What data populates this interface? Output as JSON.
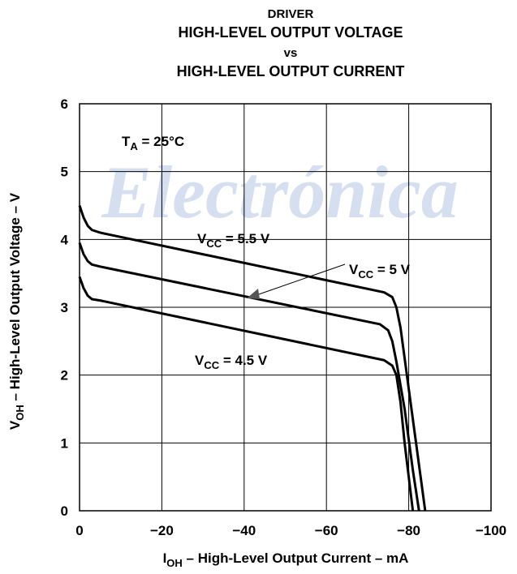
{
  "chart_data": {
    "type": "line",
    "watermark": "Electrónica",
    "title_lines": [
      "DRIVER",
      "HIGH-LEVEL OUTPUT VOLTAGE",
      "vs",
      "HIGH-LEVEL OUTPUT CURRENT"
    ],
    "xlabel": "IOH – High-Level Output Current – mA",
    "ylabel": "VOH – High-Level Output Voltage – V",
    "annotations": [
      "TA = 25°C"
    ],
    "xlim": [
      0,
      -100
    ],
    "ylim": [
      0,
      6
    ],
    "xticks": [
      0,
      {
        "value": -20,
        "label": "−20"
      },
      {
        "value": -40,
        "label": "−40"
      },
      {
        "value": -60,
        "label": "−60"
      },
      {
        "value": -80,
        "label": "−80"
      },
      {
        "value": -100,
        "label": "−100"
      }
    ],
    "yticks": [
      0,
      1,
      2,
      3,
      4,
      5,
      6
    ],
    "grid": true,
    "series": [
      {
        "name": "VCC = 5.5 V",
        "color": "#000000",
        "x": [
          0,
          -1,
          -2,
          -3,
          -5,
          -74,
          -76,
          -77,
          -78,
          -80,
          -82,
          -84
        ],
        "values": [
          4.5,
          4.32,
          4.2,
          4.14,
          4.1,
          3.22,
          3.15,
          3.0,
          2.7,
          1.8,
          0.9,
          0
        ]
      },
      {
        "name": "VCC = 5 V",
        "color": "#000000",
        "x": [
          0,
          -1,
          -2,
          -3,
          -5,
          -73,
          -75,
          -76,
          -77,
          -79,
          -81,
          -82.5
        ],
        "values": [
          3.95,
          3.78,
          3.68,
          3.63,
          3.6,
          2.75,
          2.66,
          2.5,
          2.2,
          1.5,
          0.6,
          0
        ]
      },
      {
        "name": "VCC = 4.5 V",
        "color": "#000000",
        "x": [
          0,
          -1,
          -2,
          -3,
          -5,
          -74,
          -76,
          -77,
          -78,
          -79,
          -80,
          -81
        ],
        "values": [
          3.45,
          3.28,
          3.17,
          3.12,
          3.1,
          2.22,
          2.14,
          2.0,
          1.6,
          1.0,
          0.5,
          0
        ]
      }
    ]
  }
}
